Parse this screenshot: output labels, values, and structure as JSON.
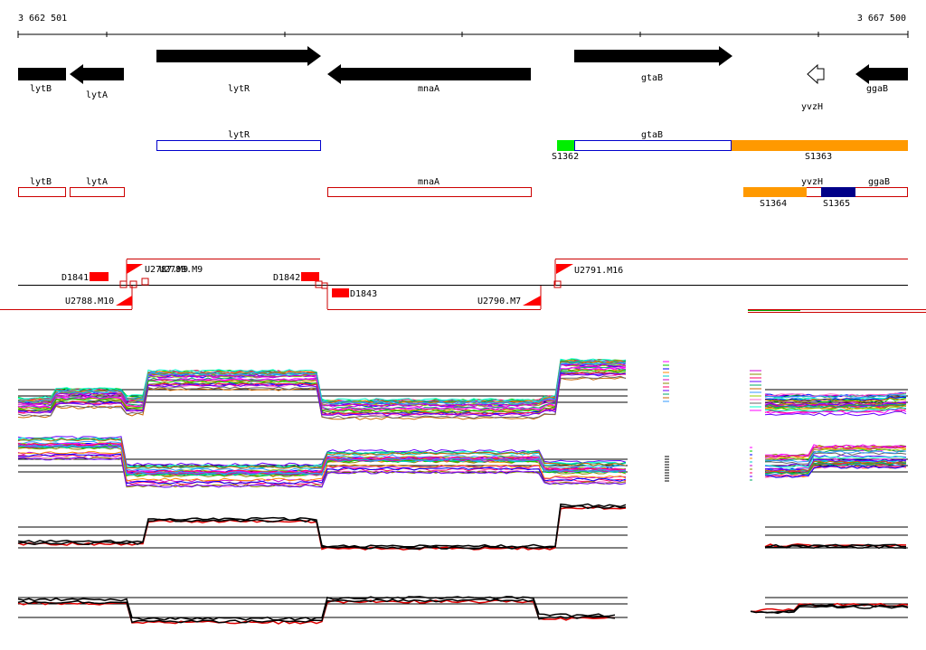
{
  "coords": {
    "start": "3 662 501",
    "end": "3 667 500"
  },
  "colors": {
    "gene": "#000000",
    "transcript": "#0000cc",
    "cds": "#cc0000",
    "segment_green": "#00ee00",
    "segment_orange": "#ff9900",
    "segment_navy": "#000088",
    "feature_red": "#ff0000",
    "trace_red": "#dd0000",
    "trace_black": "#000000"
  },
  "genes": [
    {
      "name": "lytB",
      "strand": "+"
    },
    {
      "name": "lytA",
      "strand": "-"
    },
    {
      "name": "lytR",
      "strand": "+"
    },
    {
      "name": "mnaA",
      "strand": "-"
    },
    {
      "name": "gtaB",
      "strand": "+"
    },
    {
      "name": "yvzH",
      "strand": "-"
    },
    {
      "name": "ggaB",
      "strand": "-"
    }
  ],
  "transcripts": [
    {
      "name": "lytR"
    },
    {
      "name": "gtaB"
    }
  ],
  "segments": [
    {
      "name": "S1362"
    },
    {
      "name": "S1363"
    },
    {
      "name": "S1364"
    },
    {
      "name": "S1365"
    }
  ],
  "cds": [
    {
      "name": "lytB"
    },
    {
      "name": "lytA"
    },
    {
      "name": "mnaA"
    },
    {
      "name": "yvzH"
    },
    {
      "name": "ggaB"
    }
  ],
  "features": [
    {
      "name": "D1841"
    },
    {
      "name": "U2788.M10"
    },
    {
      "name": "U2787.M9"
    },
    {
      "name": "U2789.M9"
    },
    {
      "name": "D1842"
    },
    {
      "name": "D1843"
    },
    {
      "name": "U2790.M7"
    },
    {
      "name": "U2791.M16"
    }
  ]
}
